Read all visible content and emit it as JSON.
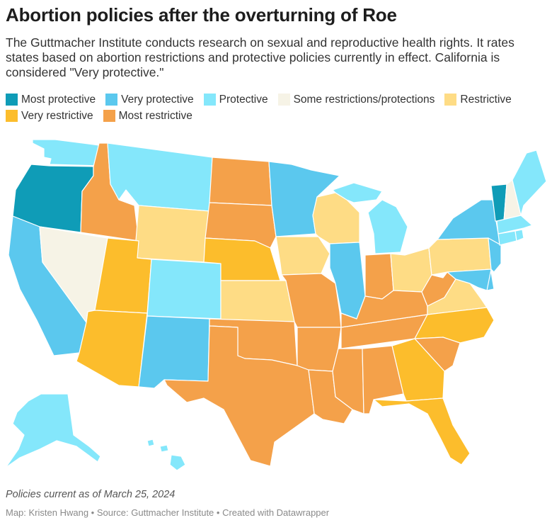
{
  "header": {
    "title": "Abortion policies after the overturning of Roe",
    "description": "The Guttmacher Institute conducts research on sexual and reproductive health rights. It rates states based on abortion restrictions and protective policies currently in effect. California is considered \"Very protective.\""
  },
  "categories": {
    "most_protective": {
      "label": "Most protective",
      "color": "#0f9cb7"
    },
    "very_protective": {
      "label": "Very protective",
      "color": "#5bc8ee"
    },
    "protective": {
      "label": "Protective",
      "color": "#84e7fb"
    },
    "some": {
      "label": "Some restrictions/protections",
      "color": "#f6f3e6"
    },
    "restrictive": {
      "label": "Restrictive",
      "color": "#fedc85"
    },
    "very_restrictive": {
      "label": "Very restrictive",
      "color": "#fcbd2c"
    },
    "most_restrictive": {
      "label": "Most restrictive",
      "color": "#f4a14a"
    }
  },
  "legend_order": [
    "most_protective",
    "very_protective",
    "protective",
    "some",
    "restrictive",
    "very_restrictive",
    "most_restrictive"
  ],
  "states": [
    {
      "id": "OR",
      "cat": "most_protective"
    },
    {
      "id": "VT",
      "cat": "most_protective"
    },
    {
      "id": "CA",
      "cat": "very_protective"
    },
    {
      "id": "NM",
      "cat": "very_protective"
    },
    {
      "id": "MN",
      "cat": "very_protective"
    },
    {
      "id": "IL",
      "cat": "very_protective"
    },
    {
      "id": "NY",
      "cat": "very_protective"
    },
    {
      "id": "NJ",
      "cat": "very_protective"
    },
    {
      "id": "MD",
      "cat": "very_protective"
    },
    {
      "id": "DE",
      "cat": "very_protective"
    },
    {
      "id": "WA",
      "cat": "protective"
    },
    {
      "id": "MT",
      "cat": "protective"
    },
    {
      "id": "CO",
      "cat": "protective"
    },
    {
      "id": "MI",
      "cat": "protective"
    },
    {
      "id": "ME",
      "cat": "protective"
    },
    {
      "id": "MA",
      "cat": "protective"
    },
    {
      "id": "CT",
      "cat": "protective"
    },
    {
      "id": "RI",
      "cat": "protective"
    },
    {
      "id": "AK",
      "cat": "protective"
    },
    {
      "id": "HI",
      "cat": "protective"
    },
    {
      "id": "NV",
      "cat": "some"
    },
    {
      "id": "NH",
      "cat": "some"
    },
    {
      "id": "WY",
      "cat": "restrictive"
    },
    {
      "id": "KS",
      "cat": "restrictive"
    },
    {
      "id": "IA",
      "cat": "restrictive"
    },
    {
      "id": "WI",
      "cat": "restrictive"
    },
    {
      "id": "OH",
      "cat": "restrictive"
    },
    {
      "id": "PA",
      "cat": "restrictive"
    },
    {
      "id": "VA",
      "cat": "restrictive"
    },
    {
      "id": "UT",
      "cat": "very_restrictive"
    },
    {
      "id": "AZ",
      "cat": "very_restrictive"
    },
    {
      "id": "NE",
      "cat": "very_restrictive"
    },
    {
      "id": "GA",
      "cat": "very_restrictive"
    },
    {
      "id": "FL",
      "cat": "very_restrictive"
    },
    {
      "id": "NC",
      "cat": "very_restrictive"
    },
    {
      "id": "ID",
      "cat": "most_restrictive"
    },
    {
      "id": "ND",
      "cat": "most_restrictive"
    },
    {
      "id": "SD",
      "cat": "most_restrictive"
    },
    {
      "id": "TX",
      "cat": "most_restrictive"
    },
    {
      "id": "OK",
      "cat": "most_restrictive"
    },
    {
      "id": "MO",
      "cat": "most_restrictive"
    },
    {
      "id": "AR",
      "cat": "most_restrictive"
    },
    {
      "id": "LA",
      "cat": "most_restrictive"
    },
    {
      "id": "MS",
      "cat": "most_restrictive"
    },
    {
      "id": "AL",
      "cat": "most_restrictive"
    },
    {
      "id": "TN",
      "cat": "most_restrictive"
    },
    {
      "id": "KY",
      "cat": "most_restrictive"
    },
    {
      "id": "IN",
      "cat": "most_restrictive"
    },
    {
      "id": "WV",
      "cat": "most_restrictive"
    },
    {
      "id": "SC",
      "cat": "most_restrictive"
    }
  ],
  "footer": {
    "note": "Policies current as of March 25, 2024",
    "credit": "Map: Kristen Hwang • Source: Guttmacher Institute • Created with Datawrapper"
  }
}
